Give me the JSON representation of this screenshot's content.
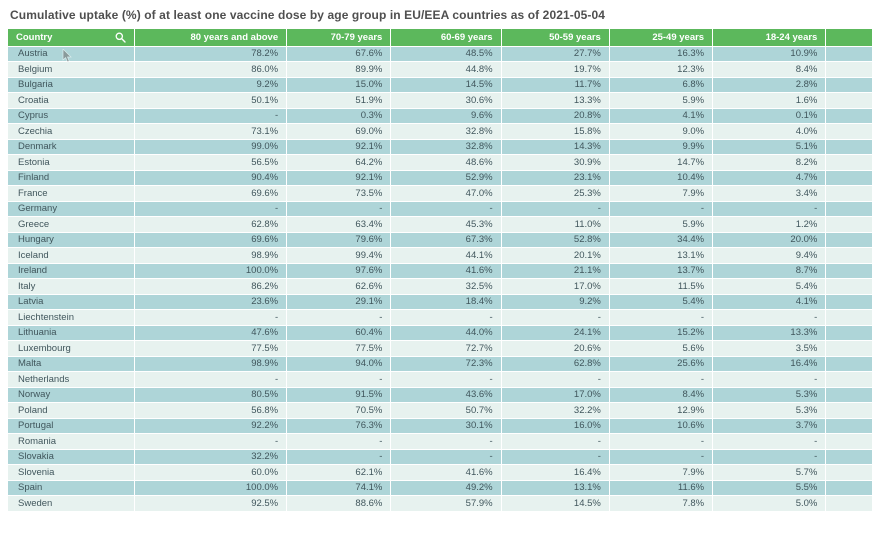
{
  "colors": {
    "header_bg": "#5cb85c",
    "header_text": "#ffffff",
    "row_dark": "#aed5d8",
    "row_light": "#e7f2ef",
    "cell_text": "#40565c",
    "title_text": "#4f4f4f",
    "page_bg": "#ffffff"
  },
  "icons": {
    "search": "magnifying-glass"
  },
  "chart_data": {
    "type": "table",
    "title": "Cumulative uptake (%) of at least one vaccine dose by age group in EU/EEA countries as of 2021-05-04",
    "columns": [
      "Country",
      "80 years and above",
      "70-79 years",
      "60-69 years",
      "50-59 years",
      "25-49 years",
      "18-24 years",
      ""
    ],
    "rows": [
      {
        "country": "Austria",
        "values": [
          "78.2%",
          "67.6%",
          "48.5%",
          "27.7%",
          "16.3%",
          "10.9%"
        ]
      },
      {
        "country": "Belgium",
        "values": [
          "86.0%",
          "89.9%",
          "44.8%",
          "19.7%",
          "12.3%",
          "8.4%"
        ]
      },
      {
        "country": "Bulgaria",
        "values": [
          "9.2%",
          "15.0%",
          "14.5%",
          "11.7%",
          "6.8%",
          "2.8%"
        ]
      },
      {
        "country": "Croatia",
        "values": [
          "50.1%",
          "51.9%",
          "30.6%",
          "13.3%",
          "5.9%",
          "1.6%"
        ]
      },
      {
        "country": "Cyprus",
        "values": [
          "-",
          "0.3%",
          "9.6%",
          "20.8%",
          "4.1%",
          "0.1%"
        ]
      },
      {
        "country": "Czechia",
        "values": [
          "73.1%",
          "69.0%",
          "32.8%",
          "15.8%",
          "9.0%",
          "4.0%"
        ]
      },
      {
        "country": "Denmark",
        "values": [
          "99.0%",
          "92.1%",
          "32.8%",
          "14.3%",
          "9.9%",
          "5.1%"
        ]
      },
      {
        "country": "Estonia",
        "values": [
          "56.5%",
          "64.2%",
          "48.6%",
          "30.9%",
          "14.7%",
          "8.2%"
        ]
      },
      {
        "country": "Finland",
        "values": [
          "90.4%",
          "92.1%",
          "52.9%",
          "23.1%",
          "10.4%",
          "4.7%"
        ]
      },
      {
        "country": "France",
        "values": [
          "69.6%",
          "73.5%",
          "47.0%",
          "25.3%",
          "7.9%",
          "3.4%"
        ]
      },
      {
        "country": "Germany",
        "values": [
          "-",
          "-",
          "-",
          "-",
          "-",
          "-"
        ]
      },
      {
        "country": "Greece",
        "values": [
          "62.8%",
          "63.4%",
          "45.3%",
          "11.0%",
          "5.9%",
          "1.2%"
        ]
      },
      {
        "country": "Hungary",
        "values": [
          "69.6%",
          "79.6%",
          "67.3%",
          "52.8%",
          "34.4%",
          "20.0%"
        ]
      },
      {
        "country": "Iceland",
        "values": [
          "98.9%",
          "99.4%",
          "44.1%",
          "20.1%",
          "13.1%",
          "9.4%"
        ]
      },
      {
        "country": "Ireland",
        "values": [
          "100.0%",
          "97.6%",
          "41.6%",
          "21.1%",
          "13.7%",
          "8.7%"
        ]
      },
      {
        "country": "Italy",
        "values": [
          "86.2%",
          "62.6%",
          "32.5%",
          "17.0%",
          "11.5%",
          "5.4%"
        ]
      },
      {
        "country": "Latvia",
        "values": [
          "23.6%",
          "29.1%",
          "18.4%",
          "9.2%",
          "5.4%",
          "4.1%"
        ]
      },
      {
        "country": "Liechtenstein",
        "values": [
          "-",
          "-",
          "-",
          "-",
          "-",
          "-"
        ]
      },
      {
        "country": "Lithuania",
        "values": [
          "47.6%",
          "60.4%",
          "44.0%",
          "24.1%",
          "15.2%",
          "13.3%"
        ]
      },
      {
        "country": "Luxembourg",
        "values": [
          "77.5%",
          "77.5%",
          "72.7%",
          "20.6%",
          "5.6%",
          "3.5%"
        ]
      },
      {
        "country": "Malta",
        "values": [
          "98.9%",
          "94.0%",
          "72.3%",
          "62.8%",
          "25.6%",
          "16.4%"
        ]
      },
      {
        "country": "Netherlands",
        "values": [
          "-",
          "-",
          "-",
          "-",
          "-",
          "-"
        ]
      },
      {
        "country": "Norway",
        "values": [
          "80.5%",
          "91.5%",
          "43.6%",
          "17.0%",
          "8.4%",
          "5.3%"
        ]
      },
      {
        "country": "Poland",
        "values": [
          "56.8%",
          "70.5%",
          "50.7%",
          "32.2%",
          "12.9%",
          "5.3%"
        ]
      },
      {
        "country": "Portugal",
        "values": [
          "92.2%",
          "76.3%",
          "30.1%",
          "16.0%",
          "10.6%",
          "3.7%"
        ]
      },
      {
        "country": "Romania",
        "values": [
          "-",
          "-",
          "-",
          "-",
          "-",
          "-"
        ]
      },
      {
        "country": "Slovakia",
        "values": [
          "32.2%",
          "-",
          "-",
          "-",
          "-",
          "-"
        ]
      },
      {
        "country": "Slovenia",
        "values": [
          "60.0%",
          "62.1%",
          "41.6%",
          "16.4%",
          "7.9%",
          "5.7%"
        ]
      },
      {
        "country": "Spain",
        "values": [
          "100.0%",
          "74.1%",
          "49.2%",
          "13.1%",
          "11.6%",
          "5.5%"
        ]
      },
      {
        "country": "Sweden",
        "values": [
          "92.5%",
          "88.6%",
          "57.9%",
          "14.5%",
          "7.8%",
          "5.0%"
        ]
      }
    ]
  }
}
